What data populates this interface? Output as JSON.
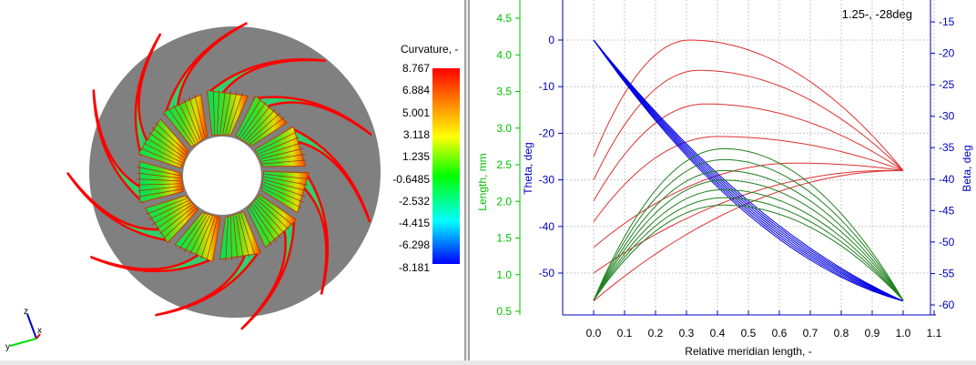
{
  "viewer": {
    "legend": {
      "title": "Curvature, -",
      "values": [
        "8.767",
        "6.884",
        "5.001",
        "3.118",
        "1.235",
        "-0.6485",
        "-2.532",
        "-4.415",
        "-6.298",
        "-8.181"
      ],
      "colors": [
        "#ff0000",
        "#ff8000",
        "#ffff00",
        "#00ff00",
        "#00ffff",
        "#0000ff"
      ]
    },
    "blade_count": 11,
    "colors": {
      "disk": "#808080",
      "hub": "#ffffff",
      "blade_edge": "#ff0000"
    },
    "triad": {
      "x": "x",
      "y": "y",
      "z": "z"
    }
  },
  "chart_data": {
    "type": "line",
    "annotation": "1.25-, -28deg",
    "xlabel": "Relative meridian length, -",
    "x_ticks": [
      "0.0",
      "0.1",
      "0.2",
      "0.3",
      "0.4",
      "0.5",
      "0.6",
      "0.7",
      "0.8",
      "0.9",
      "1.0",
      "1.1"
    ],
    "xlim": [
      -0.1,
      1.1
    ],
    "grid": true,
    "axes": {
      "length": {
        "label": "Length, mm",
        "color": "#00c000",
        "ylim": [
          0.5,
          4.5
        ],
        "ticks": [
          "0.5",
          "1.0",
          "1.5",
          "2.0",
          "2.5",
          "3.0",
          "3.5",
          "4.0",
          "4.5"
        ]
      },
      "theta": {
        "label": "Theta, deg",
        "color": "#0000c0",
        "ylim": [
          -56,
          0
        ],
        "ticks": [
          "0",
          "-10",
          "-20",
          "-30",
          "-40",
          "-50"
        ]
      },
      "beta": {
        "label": "Beta, deg",
        "color": "#0000c0",
        "ylim": [
          -60,
          -15
        ],
        "ticks": [
          "-15",
          "-20",
          "-25",
          "-30",
          "-35",
          "-40",
          "-45",
          "-50",
          "-55",
          "-60"
        ]
      }
    },
    "red_series": {
      "color": "#e03030",
      "end": [
        1.0,
        -28
      ],
      "curves": [
        {
          "start": -25,
          "peak_x": 0.31,
          "peak": 0
        },
        {
          "start": -30,
          "peak_x": 0.34,
          "peak": -6.5
        },
        {
          "start": -34.5,
          "peak_x": 0.36,
          "peak": -13.7
        },
        {
          "start": -39,
          "peak_x": 0.4,
          "peak": -20.7
        },
        {
          "start": -44.5,
          "peak_x": 0.65,
          "peak": -26.4
        },
        {
          "start": -50,
          "peak_x": 0.95,
          "peak": -28
        },
        {
          "start": -56,
          "peak_x": 1.0,
          "peak": -28
        }
      ]
    },
    "blue_series": {
      "color": "#0000e0",
      "start": [
        0,
        0
      ],
      "end": [
        1.0,
        -56
      ],
      "mid_values_at_0_5": [
        -34.5,
        -35,
        -35.5,
        -36,
        -36.5,
        -37,
        -37.5
      ]
    },
    "green_series": {
      "color": "#208020",
      "start": [
        0,
        0.65
      ],
      "end": [
        1.0,
        0.65
      ],
      "peak_x": 0.42,
      "peaks": [
        2.72,
        2.57,
        2.42,
        2.29,
        2.16,
        2.05,
        1.95
      ]
    }
  }
}
